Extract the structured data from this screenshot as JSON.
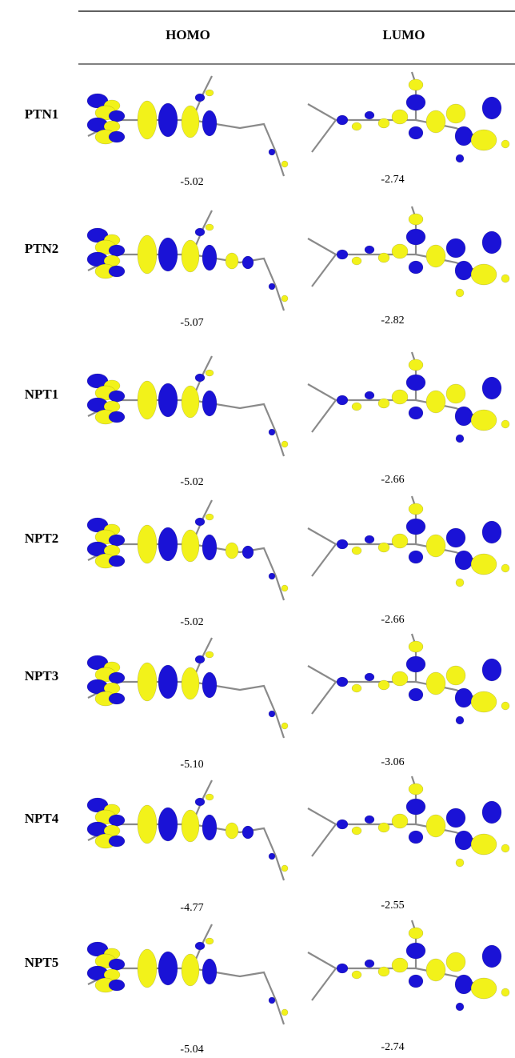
{
  "table": {
    "header": [
      "HOMO",
      "LUMO"
    ],
    "rows": [
      {
        "label": "PTN1",
        "homo": "-5.02",
        "lumo": "-2.74"
      },
      {
        "label": "PTN2",
        "homo": "-5.07",
        "lumo": "-2.82"
      },
      {
        "label": "NPT1",
        "homo": "-5.02",
        "lumo": "-2.66"
      },
      {
        "label": "NPT2",
        "homo": "-5.02",
        "lumo": "-2.66"
      },
      {
        "label": "NPT3",
        "homo": "-5.10",
        "lumo": "-3.06"
      },
      {
        "label": "NPT4",
        "homo": "-4.77",
        "lumo": "-2.55"
      },
      {
        "label": "NPT5",
        "homo": "-5.04",
        "lumo": "-2.74"
      }
    ]
  }
}
